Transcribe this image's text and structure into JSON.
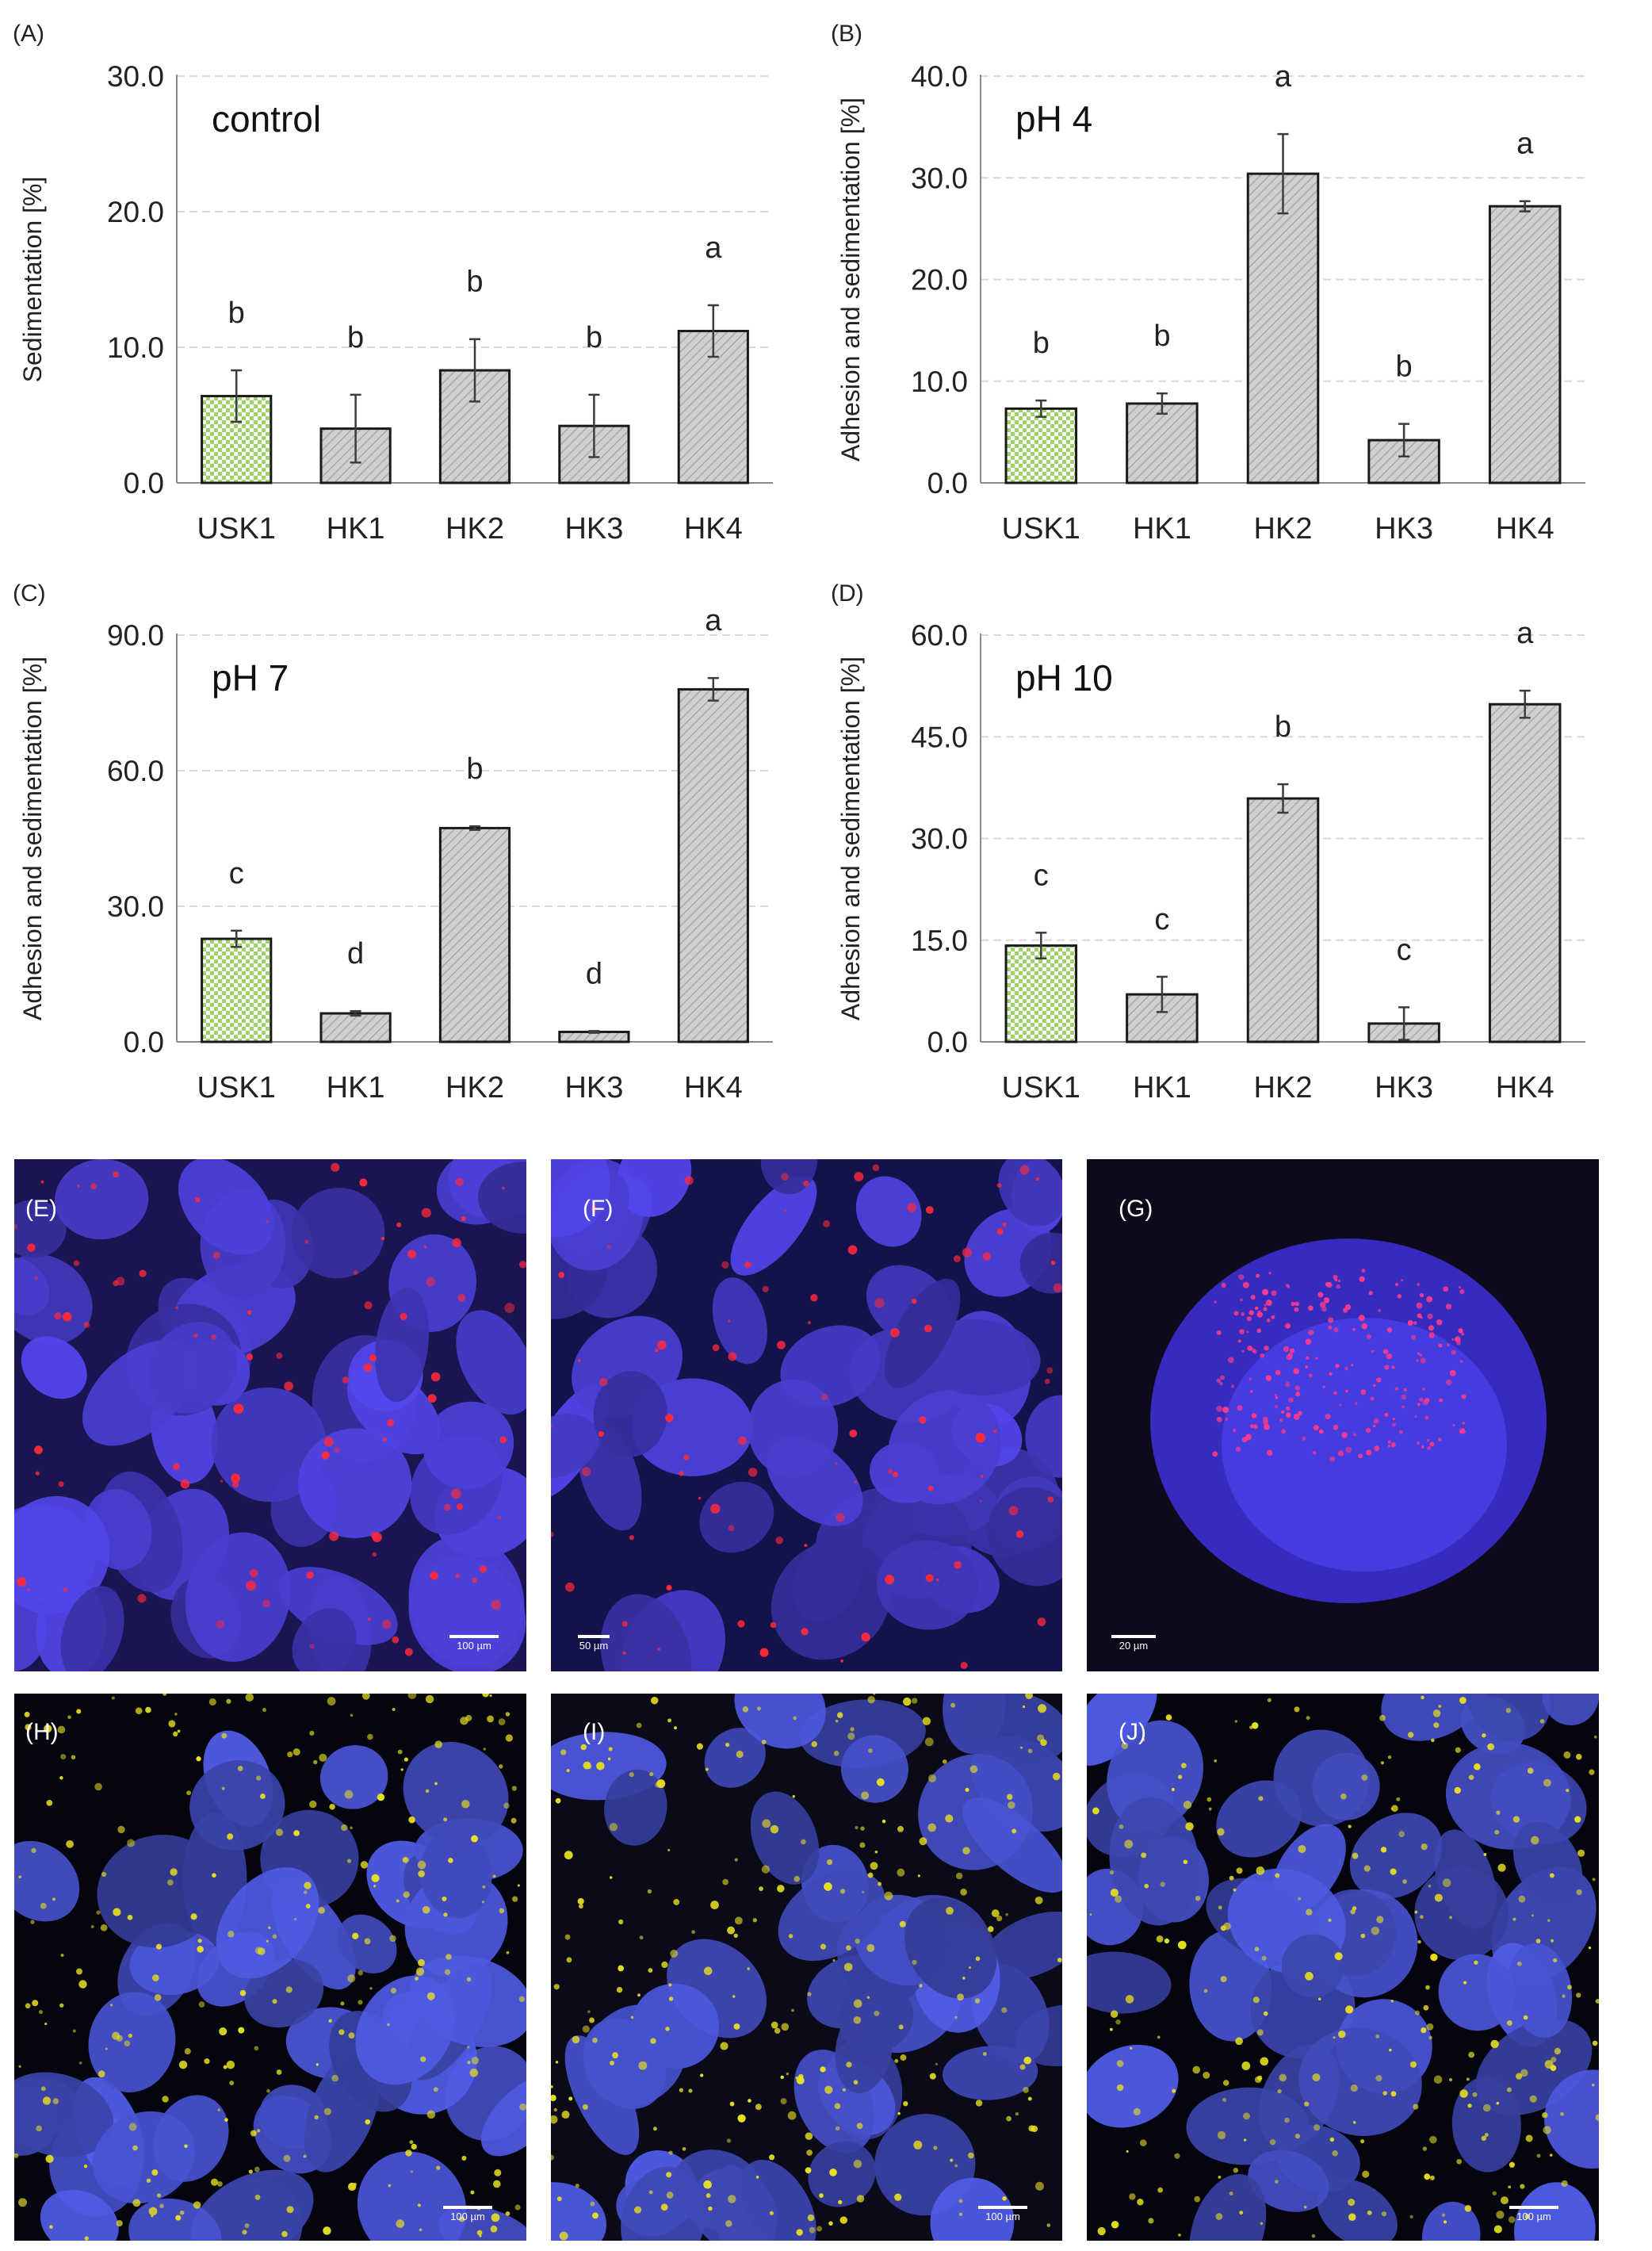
{
  "chart_data": [
    {
      "panel": "(A)",
      "type": "bar",
      "inset_text": "control",
      "ylabel": "Sedimentation [%]",
      "ylim": [
        0,
        30
      ],
      "yticks": [
        "0.0",
        "10.0",
        "20.0",
        "30.0"
      ],
      "categories": [
        "USK1",
        "HK1",
        "HK2",
        "HK3",
        "HK4"
      ],
      "values": [
        6.4,
        4.0,
        8.3,
        4.2,
        11.2
      ],
      "errors": [
        1.9,
        2.5,
        2.3,
        2.3,
        1.9
      ],
      "letters": [
        "b",
        "b",
        "b",
        "b",
        "a"
      ],
      "grid": true
    },
    {
      "panel": "(B)",
      "type": "bar",
      "inset_text": "pH 4",
      "ylabel": "Adhesion and sedimentation [%]",
      "ylim": [
        0,
        40
      ],
      "yticks": [
        "0.0",
        "10.0",
        "20.0",
        "30.0",
        "40.0"
      ],
      "categories": [
        "USK1",
        "HK1",
        "HK2",
        "HK3",
        "HK4"
      ],
      "values": [
        7.3,
        7.8,
        30.4,
        4.2,
        27.2
      ],
      "errors": [
        0.8,
        1.0,
        3.9,
        1.6,
        0.5
      ],
      "letters": [
        "b",
        "b",
        "a",
        "b",
        "a"
      ],
      "grid": true
    },
    {
      "panel": "(C)",
      "type": "bar",
      "inset_text": "pH 7",
      "ylabel": "Adhesion and sedimentation [%]",
      "ylim": [
        0,
        90
      ],
      "yticks": [
        "0.0",
        "30.0",
        "60.0",
        "90.0"
      ],
      "categories": [
        "USK1",
        "HK1",
        "HK2",
        "HK3",
        "HK4"
      ],
      "values": [
        22.8,
        6.3,
        47.3,
        2.2,
        78.0
      ],
      "errors": [
        1.8,
        0.5,
        0.4,
        0.2,
        2.5
      ],
      "letters": [
        "c",
        "d",
        "b",
        "d",
        "a"
      ],
      "grid": true
    },
    {
      "panel": "(D)",
      "type": "bar",
      "inset_text": "pH 10",
      "ylabel": "Adhesion and sedimentation [%]",
      "ylim": [
        0,
        60
      ],
      "yticks": [
        "0.0",
        "15.0",
        "30.0",
        "45.0",
        "60.0"
      ],
      "categories": [
        "USK1",
        "HK1",
        "HK2",
        "HK3",
        "HK4"
      ],
      "values": [
        14.2,
        7.0,
        35.9,
        2.7,
        49.8
      ],
      "errors": [
        1.9,
        2.6,
        2.1,
        2.4,
        2.0
      ],
      "letters": [
        "c",
        "c",
        "b",
        "c",
        "a"
      ],
      "grid": true
    }
  ],
  "series_colors": {
    "reference_fill": "#9ed36a",
    "hatched_fill": "#d0d0d0",
    "bar_outline": "#1a1a1a",
    "error_bar": "#3c3c3c",
    "gridline": "#d9d9d9"
  },
  "micrographs": [
    {
      "label": "(E)",
      "scale": "100 µm",
      "fluorescence": "red",
      "background": "#1a1450"
    },
    {
      "label": "(F)",
      "scale": "50 µm",
      "fluorescence": "red",
      "background": "#14124a"
    },
    {
      "label": "(G)",
      "scale": "20 µm",
      "fluorescence": "red",
      "background": "#0e0a1c"
    },
    {
      "label": "(H)",
      "scale": "100 µm",
      "fluorescence": "yellow",
      "background": "#050510"
    },
    {
      "label": "(I)",
      "scale": "100 µm",
      "fluorescence": "yellow",
      "background": "#0a0a18"
    },
    {
      "label": "(J)",
      "scale": "100 µm",
      "fluorescence": "yellow",
      "background": "#050510"
    }
  ]
}
